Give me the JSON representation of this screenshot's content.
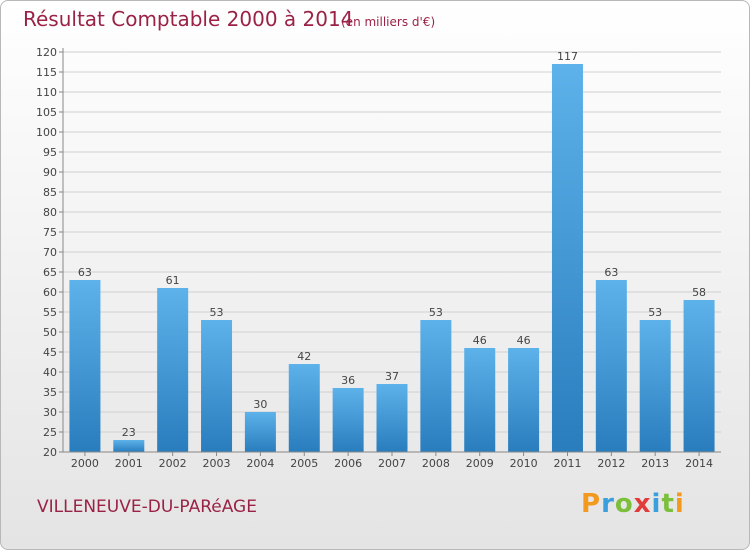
{
  "title": "Résultat Comptable 2000 à 2014",
  "subtitle": "(en milliers d'€)",
  "town": "VILLENEUVE-DU-PARéAGE",
  "logo": {
    "letters": [
      "P",
      "r",
      "o",
      "x",
      "i",
      "t",
      "i"
    ],
    "colors": [
      "#f39a1e",
      "#3aa0dd",
      "#7bbf3a",
      "#e23b3b",
      "#3aa0dd",
      "#7bbf3a",
      "#f39a1e"
    ]
  },
  "colors": {
    "bar_light": "#5db2ea",
    "bar_dark": "#2a7dbd",
    "grid": "#d0d0d0",
    "axis": "#888888"
  },
  "chart_data": {
    "type": "bar",
    "title": "Résultat Comptable 2000 à 2014",
    "subtitle": "(en milliers d'€)",
    "xlabel": "",
    "ylabel": "",
    "categories": [
      "2000",
      "2001",
      "2002",
      "2003",
      "2004",
      "2005",
      "2006",
      "2007",
      "2008",
      "2009",
      "2010",
      "2011",
      "2012",
      "2013",
      "2014"
    ],
    "values": [
      63,
      23,
      61,
      53,
      30,
      42,
      36,
      37,
      53,
      46,
      46,
      117,
      63,
      53,
      58
    ],
    "ylim": [
      20,
      120
    ],
    "yticks": [
      20,
      25,
      30,
      35,
      40,
      45,
      50,
      55,
      60,
      65,
      70,
      75,
      80,
      85,
      90,
      95,
      100,
      105,
      110,
      115,
      120
    ],
    "grid": true
  }
}
